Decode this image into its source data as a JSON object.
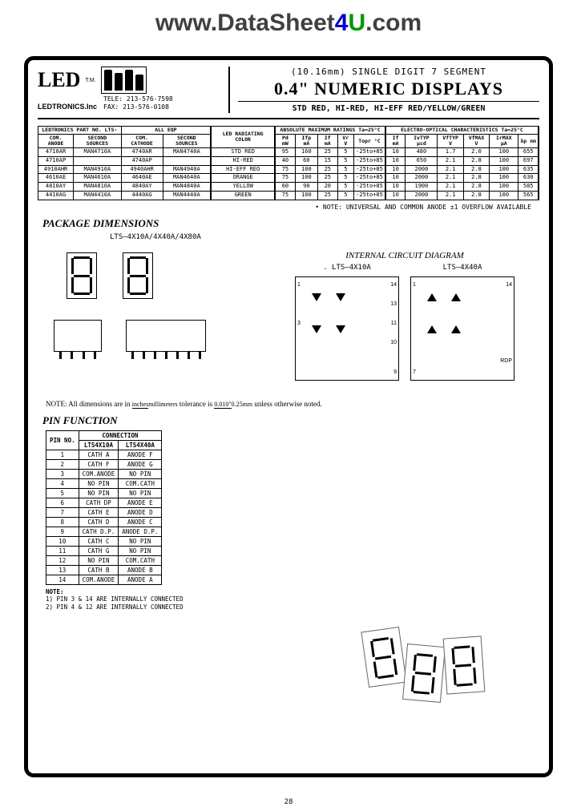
{
  "watermark": {
    "prefix": "www.",
    "main": "DataSheet",
    "four": "4",
    "u": "U",
    "suffix": ".com"
  },
  "logo": {
    "text": "LED",
    "tm": "T.M.",
    "company": "LEDTRONICS.Inc",
    "tele": "TELE: 213-576-7598",
    "fax": "FAX: 213-576-0108"
  },
  "title": {
    "line1": "(10.16mm)  SINGLE DIGIT  7 SEGMENT",
    "line2": "0.4\" NUMERIC DISPLAYS",
    "line3": "STD RED, HI-RED, HI-EFF RED/YELLOW/GREEN"
  },
  "spec_headers": {
    "group1": "LEDTRONICS PART NO. LTS-",
    "group2": "ALL EQP",
    "group3": "LED RADIATING COLOR",
    "group4": "ABSOLUTE MAXIMUM RATINGS  Ta=25°C",
    "group5": "ELECTRO-OPTICAL CHARACTERISTICS Ta=25°C",
    "cols": [
      "COM. ANODE",
      "SECOND SOURCES",
      "COM. CATHODE",
      "SECOND SOURCES",
      "",
      "Pd mW",
      "Ifp mA",
      "If mA",
      "Vr V",
      "Topr °C",
      "If mA",
      "IvTYP μcd",
      "VfTYP V",
      "VfMAX V",
      "IrMAX μA",
      "λp nm"
    ]
  },
  "spec_rows": [
    [
      "4710AR",
      "MAN4710A",
      "4740AR",
      "MAN4740A",
      "STD RED",
      "95",
      "160",
      "25",
      "5",
      "-25to+85",
      "10",
      "480",
      "1.7",
      "2.0",
      "100",
      "655"
    ],
    [
      "4710AP",
      "",
      "4740AP",
      "",
      "HI-RED",
      "40",
      "60",
      "15",
      "5",
      "-25to+85",
      "10",
      "650",
      "2.1",
      "2.8",
      "100",
      "697"
    ],
    [
      "4910AHR",
      "MAN4910A",
      "4940AHR",
      "MAN4940A",
      "HI-EFF REO",
      "75",
      "100",
      "25",
      "5",
      "-25to+85",
      "10",
      "2000",
      "2.1",
      "2.8",
      "100",
      "635"
    ],
    [
      "4610AE",
      "MAN4610A",
      "4640AE",
      "MAN4640A",
      "ORANGE",
      "75",
      "100",
      "25",
      "5",
      "-25to+85",
      "10",
      "2000",
      "2.1",
      "2.8",
      "100",
      "630"
    ],
    [
      "4810AY",
      "MAN4810A",
      "4840AY",
      "MAN4840A",
      "YELLOW",
      "60",
      "90",
      "20",
      "5",
      "-25to+85",
      "10",
      "1900",
      "2.1",
      "2.8",
      "100",
      "585"
    ],
    [
      "4410AG",
      "MAN4410A",
      "4440AG",
      "MAN4440A",
      "GREEN",
      "75",
      "100",
      "25",
      "5",
      "-25to+85",
      "10",
      "2000",
      "2.1",
      "2.8",
      "100",
      "565"
    ]
  ],
  "table_note": "• NOTE: UNIVERSAL AND COMMON ANODE ±1 OVERFLOW AVAILABLE",
  "sections": {
    "package": "PACKAGE DIMENSIONS",
    "internal": "INTERNAL CIRCUIT DIAGRAM",
    "pin": "PIN FUNCTION"
  },
  "part_labels": {
    "pkg": "LTS—4X10A/4X40A/4X80A",
    "c1": ". LTS—4X10A",
    "c2": "LTS—4X40A"
  },
  "dim_note": {
    "prefix": "NOTE: All dimensions are in ",
    "frac1_top": "inches",
    "frac1_bot": "millimeters",
    "mid": " tolerance is ",
    "frac2_top": "0.010\"",
    "frac2_bot": "0.25mm",
    "suffix": " unless otherwise noted."
  },
  "pin_table": {
    "headers": [
      "PIN NO.",
      "LTS4X10A",
      "LTS4X40A"
    ],
    "group_header": "CONNECTION",
    "rows": [
      [
        "1",
        "CATH A",
        "ANODE F"
      ],
      [
        "2",
        "CATH F",
        "ANODE G"
      ],
      [
        "3",
        "COM.ANODE",
        "NO PIN"
      ],
      [
        "4",
        "NO PIN",
        "COM.CATH"
      ],
      [
        "5",
        "NO PIN",
        "NO PIN"
      ],
      [
        "6",
        "CATH DP",
        "ANODE E"
      ],
      [
        "7",
        "CATH E",
        "ANODE D"
      ],
      [
        "8",
        "CATH D",
        "ANODE C"
      ],
      [
        "9",
        "CATH D.P.",
        "ANODE D.P."
      ],
      [
        "10",
        "CATH C",
        "NO PIN"
      ],
      [
        "11",
        "CATH G",
        "NO PIN"
      ],
      [
        "12",
        "NO PIN",
        "COM.CATH"
      ],
      [
        "13",
        "CATH B",
        "ANODE B"
      ],
      [
        "14",
        "COM.ANODE",
        "ANODE A"
      ]
    ]
  },
  "pin_notes": {
    "title": "NOTE:",
    "n1": "1) PIN 3 & 14 ARE INTERNALLY CONNECTED",
    "n2": "2) PIN 4 & 12 ARE INTERNALLY CONNECTED"
  },
  "page_number": "28"
}
